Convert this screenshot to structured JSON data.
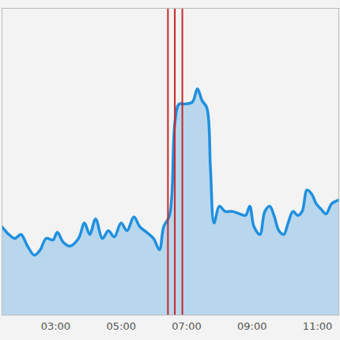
{
  "chart_data": {
    "type": "area",
    "color": "#1f8fe0",
    "tick_labels": "x",
    "grid": false,
    "x": [
      1.36,
      1.57,
      1.75,
      1.94,
      2.14,
      2.35,
      2.53,
      2.71,
      2.92,
      3.05,
      3.23,
      3.44,
      3.7,
      3.88,
      4.04,
      4.22,
      4.43,
      4.61,
      4.79,
      5.0,
      5.18,
      5.39,
      5.57,
      5.78,
      5.99,
      6.17,
      6.3,
      6.48,
      6.64,
      6.77,
      6.95,
      7.18,
      7.33,
      7.47,
      7.62,
      7.73,
      7.84,
      8.0,
      8.18,
      8.4,
      8.62,
      8.8,
      8.93,
      9.06,
      9.24,
      9.39,
      9.54,
      9.67,
      9.82,
      9.97,
      10.1,
      10.25,
      10.4,
      10.53,
      10.68,
      10.83,
      10.96,
      11.11,
      11.26,
      11.43,
      11.65
    ],
    "values": [
      28.8,
      26.3,
      25,
      26.3,
      22.5,
      19.5,
      21.3,
      25,
      24.5,
      27,
      23.8,
      22.5,
      25,
      30,
      26.3,
      31.3,
      25,
      27.5,
      25.5,
      30,
      27.5,
      32,
      28.8,
      27,
      25,
      21.3,
      28.8,
      32.5,
      62.5,
      68.8,
      68.8,
      69.5,
      73.8,
      70,
      67.5,
      47.5,
      30,
      35.5,
      33.8,
      33.8,
      33,
      32.5,
      35.5,
      28.8,
      26.3,
      33.8,
      35.5,
      32.5,
      27.5,
      26.3,
      30,
      33.8,
      32.5,
      33.8,
      40.8,
      39.3,
      36.3,
      34.5,
      33,
      36.3,
      37.5
    ],
    "xlim": [
      1.36,
      11.65
    ],
    "xticks": [
      {
        "value": 3,
        "label": "03:00"
      },
      {
        "value": 5,
        "label": "05:00"
      },
      {
        "value": 7,
        "label": "07:00"
      },
      {
        "value": 9,
        "label": "09:00"
      },
      {
        "value": 11,
        "label": "11:00"
      }
    ],
    "ylim": [
      0,
      100
    ],
    "vlines": {
      "values": [
        6.43,
        6.64,
        6.87
      ],
      "color": "#c62828"
    }
  }
}
